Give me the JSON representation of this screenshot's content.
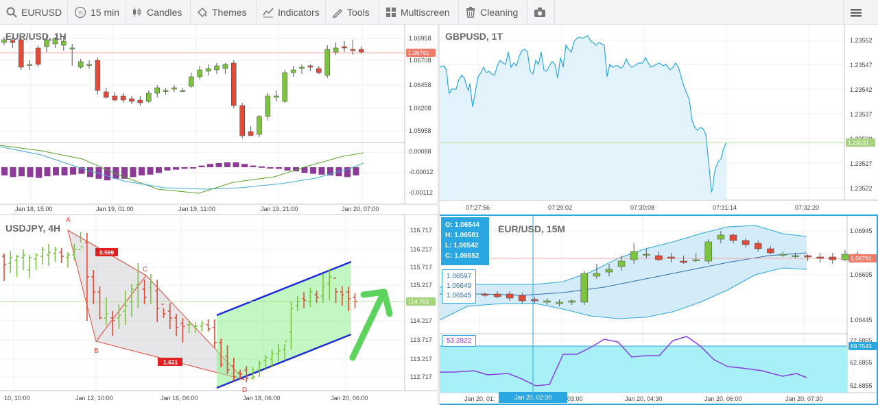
{
  "toolbar": {
    "symbol": "EURUSD",
    "interval": "15 min",
    "interval_badge": "15",
    "chart_type": "Candles",
    "themes": "Themes",
    "indicators": "Indicators",
    "tools": "Tools",
    "multiscreen": "Multiscreen",
    "cleaning": "Cleaning"
  },
  "colors": {
    "up": "#7cc440",
    "down": "#e04b3a",
    "accent": "#2aa6e0",
    "macd": "#8e3a98"
  },
  "panels": {
    "eurusd1h": {
      "title": "EUR/USD, 1H",
      "price_label": "1.06791",
      "price_ticks": [
        "1.06958",
        "1.06708",
        "1.06458",
        "1.06208",
        "1.05958"
      ],
      "macd_ticks": [
        "0.00088",
        "-0.00012",
        "-0.00112"
      ],
      "x_ticks": [
        "Jan 18, 15:00",
        "Jan 19, 01:00",
        "Jan 19, 11:00",
        "Jan 19, 21:00",
        "Jan 20, 07:00"
      ]
    },
    "gbpusd": {
      "title": "GBPUSD, 1T",
      "price_label": "1.23531",
      "price_ticks": [
        "1.23552",
        "1.23547",
        "1.23542",
        "1.23537",
        "1.23532",
        "1.23527",
        "1.23522"
      ],
      "x_ticks": [
        "07:27:56",
        "07:29:02",
        "07:30:08",
        "07:31:14",
        "07:32:20"
      ]
    },
    "usdjpy": {
      "title": "USDJPY, 4H",
      "price_label": "114.763",
      "price_ticks": [
        "116.717",
        "116.217",
        "115.717",
        "115.217",
        "114.217",
        "113.717",
        "113.217",
        "112.717"
      ],
      "x_ticks": [
        "10, 10:00",
        "Jan 12, 10:00",
        "Jan 16, 06:00",
        "Jan 18, 06:00",
        "Jan 20, 06:00"
      ],
      "pattern_points": [
        "A",
        "B",
        "C",
        "D"
      ],
      "ratio_1": "0.569",
      "ratio_2": "1.621"
    },
    "eurusd15m": {
      "title": "EUR/USD, 15M",
      "ohlc": {
        "o": "O: 1.06544",
        "h": "H: 1.06581",
        "l": "L: 1.06542",
        "c": "C: 1.06552"
      },
      "bb_values": [
        "1.06597",
        "1.06649",
        "1.06545"
      ],
      "price_label": "1.06791",
      "price_ticks": [
        "1.06945",
        "1.06695",
        "1.06445"
      ],
      "rsi_value": "53.2822",
      "rsi_label": "69.7543",
      "rsi_ticks": [
        "72.6855",
        "62.6855",
        "52.6855"
      ],
      "x_ticks": [
        "Jan 20, 01:",
        "03:00",
        "Jan 20, 04:30",
        "Jan 20, 06:00",
        "Jan 20, 07:30"
      ],
      "crosshair_time": "Jan 20, 02:30"
    }
  }
}
